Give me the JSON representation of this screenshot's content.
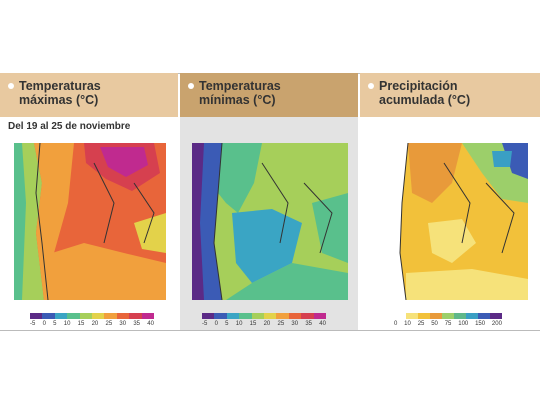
{
  "panels": [
    {
      "id": "max",
      "title_line1": "Temperaturas",
      "title_line2": "máximas (°C)",
      "header_color": "#e8c9a0",
      "subtitle": "Del 19 al 25 de noviembre",
      "legend_colors": [
        "#5b2a86",
        "#3b5bb5",
        "#3aa5c4",
        "#59c08c",
        "#a6cf5a",
        "#e3d24a",
        "#f1a03d",
        "#e8653a",
        "#d6404f",
        "#c02a8f"
      ],
      "legend_ticks": [
        "-5",
        "0",
        "5",
        "10",
        "15",
        "20",
        "25",
        "30",
        "35",
        "40"
      ]
    },
    {
      "id": "min",
      "title_line1": "Temperaturas",
      "title_line2": "mínimas (°C)",
      "header_color": "#c9a36e",
      "legend_colors": [
        "#5b2a86",
        "#3b5bb5",
        "#3aa5c4",
        "#59c08c",
        "#a6cf5a",
        "#e3d24a",
        "#f1a03d",
        "#e8653a",
        "#d6404f",
        "#c02a8f"
      ],
      "legend_ticks": [
        "-5",
        "0",
        "5",
        "10",
        "15",
        "20",
        "25",
        "30",
        "35",
        "40"
      ]
    },
    {
      "id": "precip",
      "title_line1": "Precipitación",
      "title_line2": "acumulada (°C)",
      "header_color": "#e8c9a0",
      "legend_colors": [
        "#ffffff",
        "#f6e27a",
        "#f2c13a",
        "#e89a3a",
        "#9ccf6a",
        "#5fb88a",
        "#3a9fc4",
        "#3b5bb5",
        "#5b2a86"
      ],
      "legend_ticks": [
        "0",
        "10",
        "25",
        "50",
        "75",
        "100",
        "150",
        "200"
      ]
    }
  ]
}
